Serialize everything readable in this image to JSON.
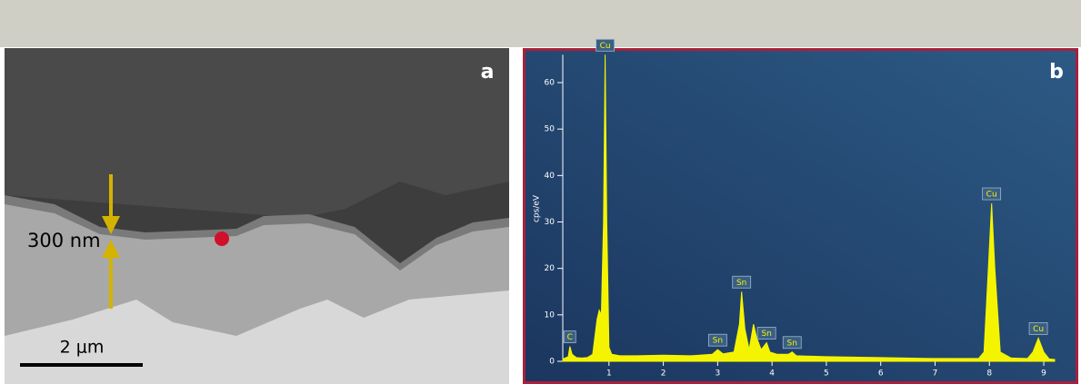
{
  "panel_a": {
    "label": "a",
    "thickness_label": "300 nm",
    "scale_label": "2 μm"
  },
  "chart_data": {
    "type": "area",
    "label": "b",
    "ylabel": "cps/eV",
    "color": "#f4f400",
    "x": [
      0.15,
      0.25,
      0.28,
      0.32,
      0.4,
      0.5,
      0.6,
      0.7,
      0.78,
      0.82,
      0.86,
      0.9,
      0.93,
      0.96,
      1.0,
      1.05,
      1.2,
      1.5,
      2.0,
      2.5,
      2.9,
      3.0,
      3.1,
      3.3,
      3.4,
      3.44,
      3.5,
      3.58,
      3.66,
      3.72,
      3.8,
      3.9,
      3.96,
      4.1,
      4.3,
      4.37,
      4.45,
      5,
      6,
      7,
      7.8,
      7.9,
      7.98,
      8.04,
      8.1,
      8.2,
      8.4,
      8.7,
      8.8,
      8.9,
      9.0,
      9.1,
      9.2
    ],
    "values": [
      0.5,
      1,
      3.2,
      1.5,
      0.8,
      0.7,
      0.8,
      1.5,
      9,
      11,
      10,
      30,
      66,
      30,
      3,
      1.5,
      1.2,
      1.2,
      1.3,
      1.2,
      1.5,
      2.5,
      1.6,
      2,
      8,
      15,
      7,
      2.5,
      8,
      5,
      2.5,
      4,
      2,
      1.5,
      1.5,
      2,
      1.2,
      1,
      0.8,
      0.6,
      0.6,
      2,
      20,
      34,
      20,
      2,
      0.7,
      0.6,
      2,
      5,
      2,
      0.5,
      0.4
    ],
    "xlim": [
      0.15,
      9.2
    ],
    "ylim": [
      0,
      66
    ],
    "xticks": [
      1,
      2,
      3,
      4,
      5,
      6,
      7,
      8,
      9
    ],
    "yticks": [
      0,
      10,
      20,
      30,
      40,
      50,
      60
    ],
    "annotations": [
      {
        "text": "C",
        "x": 0.28,
        "y": 3.2
      },
      {
        "text": "Cu",
        "x": 0.93,
        "y": 66
      },
      {
        "text": "Sn",
        "x": 3.0,
        "y": 2.5
      },
      {
        "text": "Sn",
        "x": 3.44,
        "y": 15
      },
      {
        "text": "Sn",
        "x": 3.9,
        "y": 4
      },
      {
        "text": "Sn",
        "x": 4.37,
        "y": 2
      },
      {
        "text": "Cu",
        "x": 8.04,
        "y": 34
      },
      {
        "text": "Cu",
        "x": 8.9,
        "y": 5
      }
    ]
  }
}
